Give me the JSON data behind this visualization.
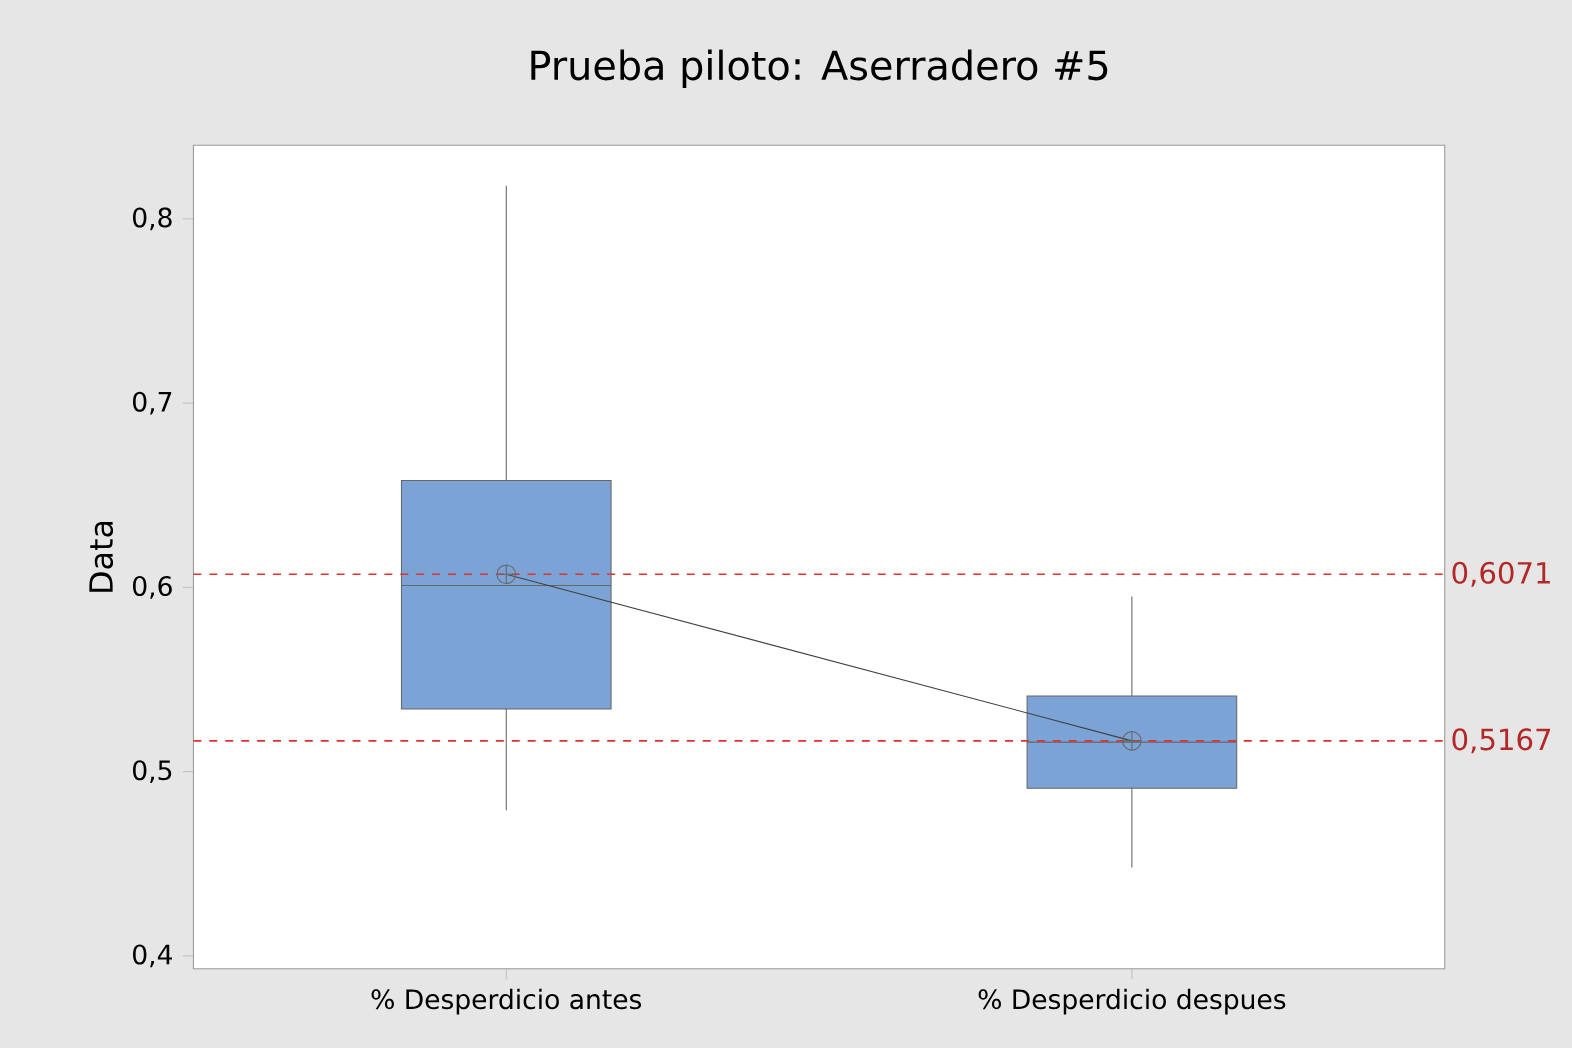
{
  "chart_data": {
    "type": "box",
    "title": "Prueba piloto: Aserradero #5",
    "ylabel": "Data",
    "categories": [
      "% Desperdicio antes",
      "% Desperdicio despues"
    ],
    "ylim": [
      0.393,
      0.84
    ],
    "yticks": [
      {
        "value": 0.4,
        "label": "0,4"
      },
      {
        "value": 0.5,
        "label": "0,5"
      },
      {
        "value": 0.6,
        "label": "0,6"
      },
      {
        "value": 0.7,
        "label": "0,7"
      },
      {
        "value": 0.8,
        "label": "0,8"
      }
    ],
    "series": [
      {
        "type": "box",
        "color": "#7ba3d6",
        "boxes": [
          {
            "low": 0.479,
            "q1": 0.534,
            "median": 0.601,
            "q3": 0.658,
            "high": 0.818,
            "mean": 0.6071
          },
          {
            "low": 0.448,
            "q1": 0.491,
            "median": 0.516,
            "q3": 0.541,
            "high": 0.595,
            "mean": 0.5167
          }
        ]
      },
      {
        "type": "line",
        "color": "#404040",
        "marker": "none",
        "values": [
          0.6071,
          0.5167
        ]
      }
    ],
    "ref_lines": [
      {
        "axis": "y",
        "value": 0.6071,
        "label": "0,6071",
        "color": "#e03030",
        "line_style": "dashed"
      },
      {
        "axis": "y",
        "value": 0.5167,
        "label": "0,5167",
        "color": "#e03030",
        "line_style": "dashed"
      }
    ]
  }
}
